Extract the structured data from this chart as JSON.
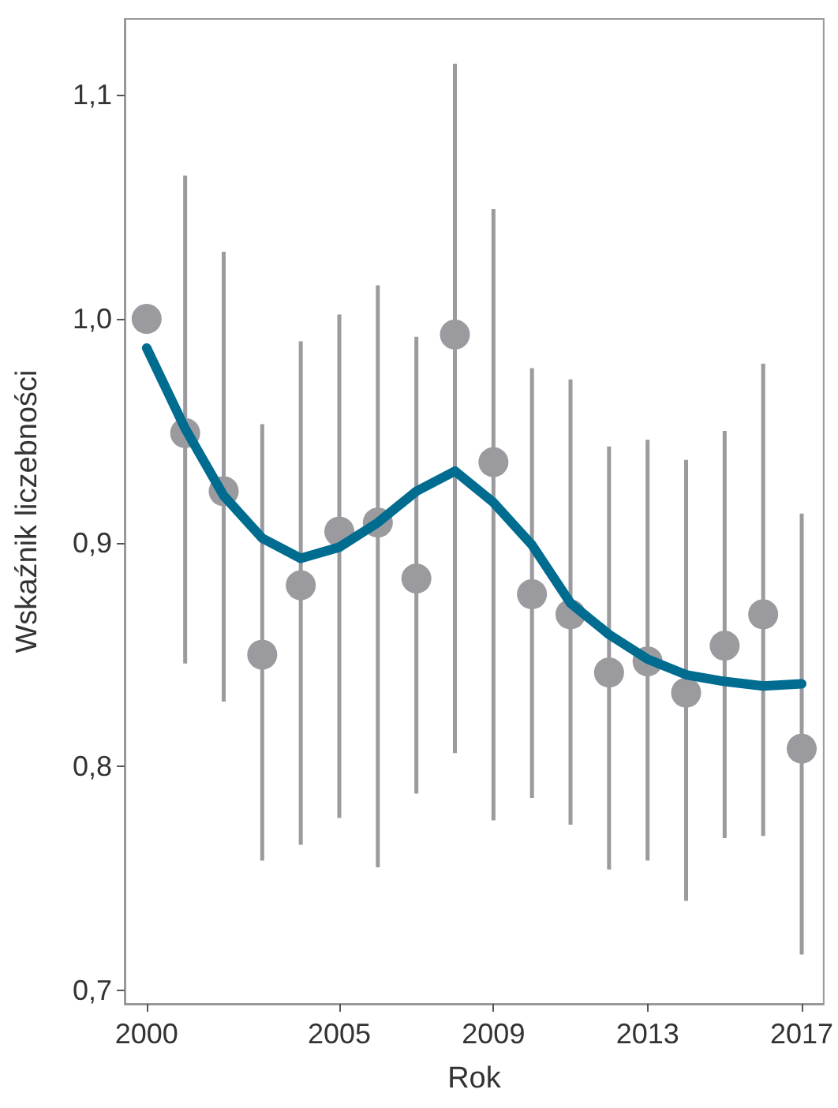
{
  "chart_data": {
    "type": "scatter",
    "xlabel": "Rok",
    "ylabel": "Wskaźnik liczebności",
    "xlim": [
      1999.43,
      2017.57
    ],
    "xticks": [
      2000,
      2005,
      2009,
      2013,
      2017
    ],
    "ylim": [
      0.694,
      1.134
    ],
    "yticks": [
      {
        "value": 0.7,
        "label": "0,7"
      },
      {
        "value": 0.8,
        "label": "0,8"
      },
      {
        "value": 0.9,
        "label": "0,9"
      },
      {
        "value": 1.0,
        "label": "1,0"
      },
      {
        "value": 1.1,
        "label": "1,1"
      }
    ],
    "grid": false,
    "marker": "circle",
    "series": [
      {
        "color": "#9b9b9f",
        "x": [
          2000,
          2001,
          2002,
          2003,
          2004,
          2005,
          2006,
          2007,
          2008,
          2009,
          2010,
          2011,
          2012,
          2013,
          2014,
          2015,
          2016,
          2017
        ],
        "values": [
          1.0,
          0.949,
          0.923,
          0.85,
          0.881,
          0.905,
          0.909,
          0.884,
          0.993,
          0.936,
          0.877,
          0.868,
          0.842,
          0.847,
          0.833,
          0.854,
          0.868,
          0.808
        ],
        "errors": [
          null,
          [
            0.846,
            1.064
          ],
          [
            0.829,
            1.03
          ],
          [
            0.758,
            0.953
          ],
          [
            0.765,
            0.99
          ],
          [
            0.777,
            1.002
          ],
          [
            0.755,
            1.015
          ],
          [
            0.788,
            0.992
          ],
          [
            0.806,
            1.114
          ],
          [
            0.776,
            1.049
          ],
          [
            0.786,
            0.978
          ],
          [
            0.774,
            0.973
          ],
          [
            0.754,
            0.943
          ],
          [
            0.758,
            0.946
          ],
          [
            0.74,
            0.937
          ],
          [
            0.768,
            0.95
          ],
          [
            0.769,
            0.98
          ],
          [
            0.716,
            0.913
          ]
        ]
      },
      {
        "type": "line",
        "color": "#006c8f",
        "marker": "none",
        "line_style": "solid",
        "x": [
          2000,
          2001,
          2002,
          2003,
          2004,
          2005,
          2006,
          2007,
          2008,
          2009,
          2010,
          2011,
          2012,
          2013,
          2014,
          2015,
          2016,
          2017
        ],
        "values": [
          0.987,
          0.951,
          0.921,
          0.902,
          0.893,
          0.898,
          0.909,
          0.923,
          0.932,
          0.918,
          0.899,
          0.873,
          0.859,
          0.848,
          0.841,
          0.838,
          0.836,
          0.837
        ]
      }
    ]
  }
}
